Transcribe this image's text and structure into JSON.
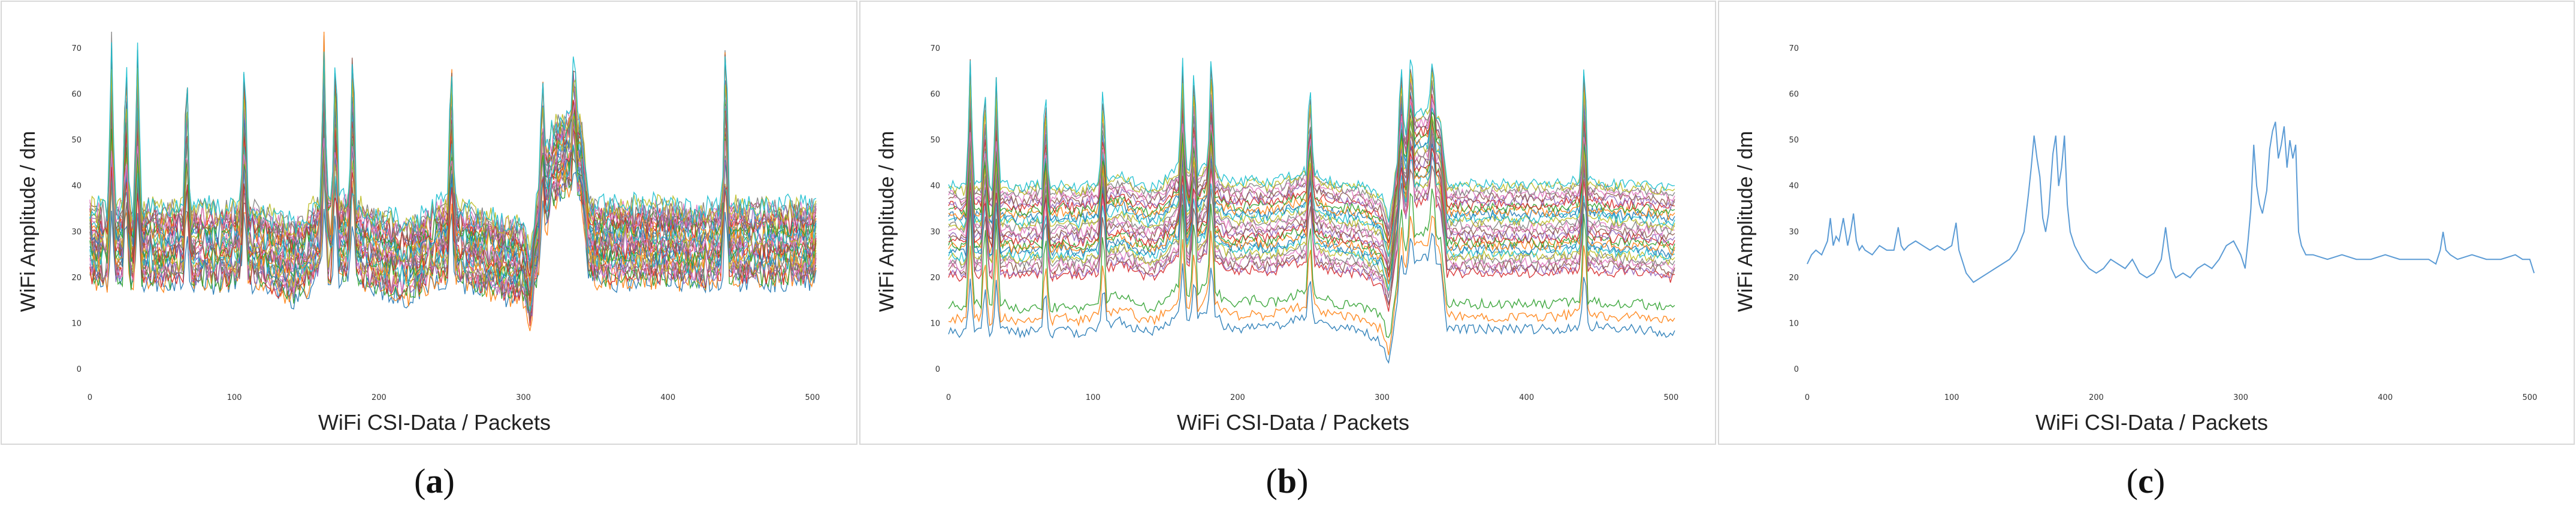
{
  "chart_data": [
    {
      "type": "line",
      "panel_label": "a",
      "xlabel": "WiFi CSI-Data / Packets",
      "ylabel": "WiFi Amplitude / dm",
      "xlim": [
        0,
        510
      ],
      "ylim": [
        -3,
        76
      ],
      "xticks": [
        0,
        100,
        200,
        300,
        400,
        500
      ],
      "yticks": [
        0,
        10,
        20,
        30,
        40,
        50,
        60,
        70
      ],
      "series_count": 30,
      "base_profile": [
        [
          0,
          28
        ],
        [
          10,
          27
        ],
        [
          20,
          28
        ],
        [
          30,
          27
        ],
        [
          40,
          28
        ],
        [
          50,
          27
        ],
        [
          60,
          28
        ],
        [
          70,
          27
        ],
        [
          80,
          28
        ],
        [
          90,
          27
        ],
        [
          100,
          28
        ],
        [
          110,
          28
        ],
        [
          120,
          27
        ],
        [
          130,
          25
        ],
        [
          140,
          24
        ],
        [
          150,
          26
        ],
        [
          160,
          30
        ],
        [
          170,
          28
        ],
        [
          180,
          30
        ],
        [
          190,
          27
        ],
        [
          200,
          26
        ],
        [
          210,
          25
        ],
        [
          220,
          24
        ],
        [
          230,
          26
        ],
        [
          240,
          28
        ],
        [
          250,
          29
        ],
        [
          260,
          27
        ],
        [
          270,
          26
        ],
        [
          280,
          25
        ],
        [
          290,
          24
        ],
        [
          300,
          24
        ],
        [
          305,
          18
        ],
        [
          310,
          30
        ],
        [
          320,
          45
        ],
        [
          330,
          48
        ],
        [
          340,
          46
        ],
        [
          345,
          30
        ],
        [
          350,
          28
        ],
        [
          360,
          28
        ],
        [
          380,
          28
        ],
        [
          400,
          28
        ],
        [
          420,
          27
        ],
        [
          440,
          28
        ],
        [
          460,
          28
        ],
        [
          480,
          28
        ],
        [
          500,
          28
        ]
      ],
      "spikes": [
        [
          15,
          71
        ],
        [
          25,
          70
        ],
        [
          33,
          68
        ],
        [
          67,
          68
        ],
        [
          107,
          70
        ],
        [
          162,
          70
        ],
        [
          170,
          73
        ],
        [
          182,
          74
        ],
        [
          250,
          70
        ],
        [
          313,
          64
        ],
        [
          335,
          65
        ],
        [
          440,
          76
        ]
      ]
    },
    {
      "type": "line",
      "panel_label": "b",
      "xlabel": "WiFi CSI-Data / Packets",
      "ylabel": "WiFi Amplitude / dm",
      "xlim": [
        0,
        510
      ],
      "ylim": [
        -3,
        76
      ],
      "xticks": [
        0,
        100,
        200,
        300,
        400,
        500
      ],
      "yticks": [
        0,
        10,
        20,
        30,
        40,
        50,
        60,
        70
      ],
      "series_count": 30,
      "base_profile": [
        [
          0,
          30
        ],
        [
          10,
          29
        ],
        [
          20,
          30
        ],
        [
          30,
          29
        ],
        [
          40,
          30
        ],
        [
          50,
          29
        ],
        [
          60,
          30
        ],
        [
          70,
          29
        ],
        [
          80,
          30
        ],
        [
          90,
          29
        ],
        [
          100,
          30
        ],
        [
          110,
          31
        ],
        [
          120,
          32
        ],
        [
          130,
          30
        ],
        [
          140,
          29
        ],
        [
          150,
          31
        ],
        [
          160,
          34
        ],
        [
          170,
          31
        ],
        [
          180,
          35
        ],
        [
          190,
          31
        ],
        [
          200,
          30
        ],
        [
          210,
          31
        ],
        [
          220,
          30
        ],
        [
          230,
          31
        ],
        [
          240,
          32
        ],
        [
          250,
          33
        ],
        [
          260,
          31
        ],
        [
          270,
          30
        ],
        [
          280,
          30
        ],
        [
          290,
          29
        ],
        [
          300,
          27
        ],
        [
          305,
          22
        ],
        [
          310,
          35
        ],
        [
          320,
          45
        ],
        [
          330,
          46
        ],
        [
          340,
          45
        ],
        [
          345,
          30
        ],
        [
          350,
          30
        ],
        [
          360,
          30
        ],
        [
          380,
          30
        ],
        [
          400,
          30
        ],
        [
          420,
          30
        ],
        [
          440,
          31
        ],
        [
          460,
          30
        ],
        [
          480,
          30
        ],
        [
          500,
          29
        ]
      ],
      "spikes": [
        [
          15,
          62
        ],
        [
          25,
          59
        ],
        [
          33,
          58
        ],
        [
          67,
          57
        ],
        [
          107,
          58
        ],
        [
          162,
          61
        ],
        [
          170,
          62
        ],
        [
          182,
          66
        ],
        [
          250,
          59
        ],
        [
          313,
          62
        ],
        [
          320,
          63
        ],
        [
          335,
          62
        ],
        [
          440,
          66
        ]
      ]
    },
    {
      "type": "line",
      "panel_label": "c",
      "xlabel": "WiFi CSI-Data / Packets",
      "ylabel": "WiFi Amplitude / dm",
      "xlim": [
        0,
        510
      ],
      "ylim": [
        -3,
        76
      ],
      "xticks": [
        0,
        100,
        200,
        300,
        400,
        500
      ],
      "yticks": [
        0,
        10,
        20,
        30,
        40,
        50,
        60,
        70
      ],
      "series": [
        {
          "color": "#5b9bd5",
          "x": [
            0,
            3,
            6,
            10,
            14,
            16,
            18,
            20,
            22,
            25,
            28,
            30,
            32,
            34,
            36,
            38,
            40,
            45,
            50,
            55,
            60,
            63,
            65,
            67,
            70,
            75,
            80,
            85,
            90,
            95,
            100,
            103,
            105,
            108,
            110,
            115,
            120,
            125,
            130,
            135,
            140,
            145,
            150,
            153,
            155,
            157,
            159,
            161,
            163,
            165,
            167,
            170,
            172,
            174,
            176,
            178,
            180,
            182,
            185,
            190,
            195,
            200,
            205,
            210,
            215,
            220,
            225,
            230,
            235,
            240,
            245,
            248,
            250,
            252,
            255,
            260,
            265,
            270,
            275,
            280,
            285,
            290,
            295,
            300,
            303,
            305,
            307,
            309,
            311,
            313,
            315,
            318,
            320,
            322,
            324,
            326,
            328,
            330,
            332,
            334,
            336,
            338,
            340,
            342,
            345,
            350,
            360,
            370,
            380,
            390,
            400,
            410,
            420,
            430,
            435,
            438,
            440,
            442,
            445,
            450,
            460,
            470,
            480,
            490,
            495,
            500,
            503
          ],
          "y": [
            23,
            25,
            26,
            25,
            28,
            33,
            27,
            29,
            28,
            33,
            27,
            30,
            34,
            28,
            26,
            27,
            26,
            25,
            27,
            26,
            26,
            31,
            27,
            26,
            27,
            28,
            27,
            26,
            27,
            26,
            27,
            32,
            26,
            23,
            21,
            19,
            20,
            21,
            22,
            23,
            24,
            26,
            30,
            38,
            44,
            51,
            46,
            42,
            33,
            30,
            34,
            47,
            51,
            40,
            44,
            51,
            36,
            30,
            27,
            24,
            22,
            21,
            22,
            24,
            23,
            22,
            24,
            21,
            20,
            21,
            24,
            31,
            26,
            22,
            20,
            21,
            20,
            22,
            23,
            22,
            24,
            27,
            28,
            25,
            22,
            28,
            35,
            49,
            40,
            36,
            34,
            39,
            48,
            52,
            54,
            46,
            49,
            53,
            44,
            50,
            46,
            49,
            30,
            27,
            25,
            25,
            24,
            25,
            24,
            24,
            25,
            24,
            24,
            24,
            23,
            26,
            30,
            26,
            25,
            24,
            25,
            24,
            24,
            25,
            24,
            24,
            21
          ]
        }
      ]
    }
  ],
  "captions": {
    "a": {
      "open": "(",
      "letter": "a",
      "close": ")"
    },
    "b": {
      "open": "(",
      "letter": "b",
      "close": ")"
    },
    "c": {
      "open": "(",
      "letter": "c",
      "close": ")"
    }
  },
  "colors": {
    "palette": [
      "#1f77b4",
      "#ff7f0e",
      "#2ca02c",
      "#d62728",
      "#9467bd",
      "#8c564b",
      "#e377c2",
      "#7f7f7f",
      "#bcbd22",
      "#17becf"
    ],
    "frame": "#d8d8d8",
    "tick_text": "#333333"
  }
}
